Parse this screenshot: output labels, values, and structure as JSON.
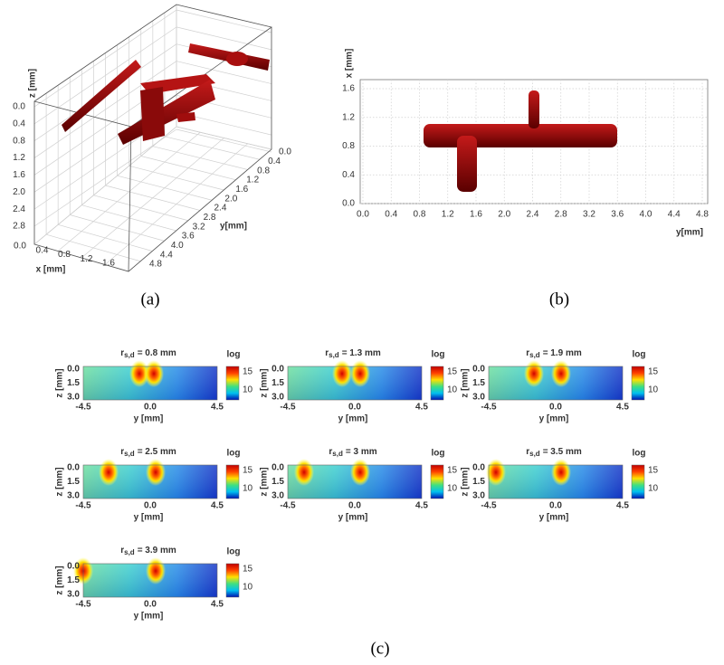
{
  "panel_a": {
    "label": "(a)",
    "z_axis_label": "z [mm]",
    "z_ticks": [
      "0.0",
      "0.4",
      "0.8",
      "1.2",
      "1.6",
      "2.0",
      "2.4",
      "2.8"
    ],
    "x_axis_label": "x [mm]",
    "x_ticks": [
      "0.0",
      "0.4",
      "0.8",
      "1.2",
      "1.6"
    ],
    "y_axis_label": "y[mm]",
    "y_ticks": [
      "0.0",
      "0.4",
      "0.8",
      "1.2",
      "1.6",
      "2.0",
      "2.4",
      "2.8",
      "3.2",
      "3.6",
      "4.0",
      "4.4",
      "4.8"
    ]
  },
  "panel_b": {
    "label": "(b)",
    "vertical_axis_label": "x [mm]",
    "vertical_ticks": [
      "0.0",
      "0.4",
      "0.8",
      "1.2",
      "1.6"
    ],
    "horizontal_axis_label": "y[mm]",
    "horizontal_ticks": [
      "0.0",
      "0.4",
      "0.8",
      "1.2",
      "1.6",
      "2.0",
      "2.4",
      "2.8",
      "3.2",
      "3.6",
      "4.0",
      "4.4",
      "4.8"
    ]
  },
  "panel_c": {
    "label": "(c)",
    "maps": [
      {
        "title_symbol": "r",
        "title_subscript": "s,d",
        "title_rest": "= 0.8 mm",
        "z_axis_label": "z [mm]",
        "z_ticks": [
          "0.0",
          "1.5",
          "3.0"
        ],
        "y_axis_label": "y [mm]",
        "y_ticks": [
          "-4.5",
          "0.0",
          "4.5"
        ],
        "colorbar_label": "log",
        "colorbar_ticks": [
          "15",
          "10"
        ]
      },
      {
        "title_symbol": "r",
        "title_subscript": "s,d",
        "title_rest": "= 1.3 mm",
        "z_axis_label": "z [mm]",
        "z_ticks": [
          "0.0",
          "1.5",
          "3.0"
        ],
        "y_axis_label": "y [mm]",
        "y_ticks": [
          "-4.5",
          "0.0",
          "4.5"
        ],
        "colorbar_label": "log",
        "colorbar_ticks": [
          "15",
          "10"
        ]
      },
      {
        "title_symbol": "r",
        "title_subscript": "s,d",
        "title_rest": "= 1.9 mm",
        "z_axis_label": "z [mm]",
        "z_ticks": [
          "0.0",
          "1.5",
          "3.0"
        ],
        "y_axis_label": "y [mm]",
        "y_ticks": [
          "-4.5",
          "0.0",
          "4.5"
        ],
        "colorbar_label": "log",
        "colorbar_ticks": [
          "15",
          "10"
        ]
      },
      {
        "title_symbol": "r",
        "title_subscript": "s,d",
        "title_rest": "= 2.5 mm",
        "z_axis_label": "z [mm]",
        "z_ticks": [
          "0.0",
          "1.5",
          "3.0"
        ],
        "y_axis_label": "y [mm]",
        "y_ticks": [
          "-4.5",
          "0.0",
          "4.5"
        ],
        "colorbar_label": "log",
        "colorbar_ticks": [
          "15",
          "10"
        ]
      },
      {
        "title_symbol": "r",
        "title_subscript": "s,d",
        "title_rest": "= 3 mm",
        "z_axis_label": "z [mm]",
        "z_ticks": [
          "0.0",
          "1.5",
          "3.0"
        ],
        "y_axis_label": "y [mm]",
        "y_ticks": [
          "-4.5",
          "0.0",
          "4.5"
        ],
        "colorbar_label": "log",
        "colorbar_ticks": [
          "15",
          "10"
        ]
      },
      {
        "title_symbol": "r",
        "title_subscript": "s,d",
        "title_rest": "= 3.5 mm",
        "z_axis_label": "z [mm]",
        "z_ticks": [
          "0.0",
          "1.5",
          "3.0"
        ],
        "y_axis_label": "y [mm]",
        "y_ticks": [
          "-4.5",
          "0.0",
          "4.5"
        ],
        "colorbar_label": "log",
        "colorbar_ticks": [
          "15",
          "10"
        ]
      },
      {
        "title_symbol": "r",
        "title_subscript": "s,d",
        "title_rest": "= 3.9 mm",
        "z_axis_label": "z [mm]",
        "z_ticks": [
          "0.0",
          "1.5",
          "3.0"
        ],
        "y_axis_label": "y [mm]",
        "y_ticks": [
          "-4.5",
          "0.0",
          "4.5"
        ],
        "colorbar_label": "log",
        "colorbar_ticks": [
          "15",
          "10"
        ]
      }
    ]
  }
}
